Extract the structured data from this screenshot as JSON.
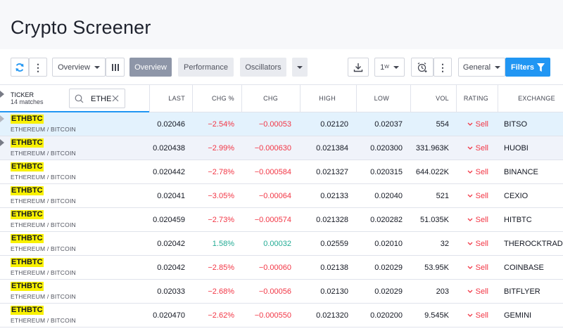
{
  "page": {
    "title": "Crypto Screener"
  },
  "toolbar": {
    "overview_dropdown": "Overview",
    "tabs": [
      "Overview",
      "Performance",
      "Oscillators"
    ],
    "interval": "1",
    "interval_sup": "W",
    "group": "General",
    "filters": "Filters"
  },
  "header": {
    "ticker": "TICKER",
    "matches": "14 matches",
    "search_value": "ETHE",
    "columns": [
      "LAST",
      "CHG %",
      "CHG",
      "HIGH",
      "LOW",
      "VOL",
      "RATING",
      "EXCHANGE"
    ]
  },
  "rows": [
    {
      "symbol": "ETHBTC",
      "desc": "ETHEREUM / BITCOIN",
      "last": "0.02046",
      "chg_pct": "−2.54%",
      "chg": "−0.00053",
      "high": "0.02120",
      "low": "0.02037",
      "vol": "554",
      "rating": "Sell",
      "exchange": "BITSO",
      "dir": "neg"
    },
    {
      "symbol": "ETHBTC",
      "desc": "ETHEREUM / BITCOIN",
      "last": "0.020438",
      "chg_pct": "−2.99%",
      "chg": "−0.000630",
      "high": "0.021384",
      "low": "0.020300",
      "vol": "331.963K",
      "rating": "Sell",
      "exchange": "HUOBI",
      "dir": "neg"
    },
    {
      "symbol": "ETHBTC",
      "desc": "ETHEREUM / BITCOIN",
      "last": "0.020442",
      "chg_pct": "−2.78%",
      "chg": "−0.000584",
      "high": "0.021327",
      "low": "0.020315",
      "vol": "644.022K",
      "rating": "Sell",
      "exchange": "BINANCE",
      "dir": "neg"
    },
    {
      "symbol": "ETHBTC",
      "desc": "ETHEREUM / BITCOIN",
      "last": "0.02041",
      "chg_pct": "−3.05%",
      "chg": "−0.00064",
      "high": "0.02133",
      "low": "0.02040",
      "vol": "521",
      "rating": "Sell",
      "exchange": "CEXIO",
      "dir": "neg"
    },
    {
      "symbol": "ETHBTC",
      "desc": "ETHEREUM / BITCOIN",
      "last": "0.020459",
      "chg_pct": "−2.73%",
      "chg": "−0.000574",
      "high": "0.021328",
      "low": "0.020282",
      "vol": "51.035K",
      "rating": "Sell",
      "exchange": "HITBTC",
      "dir": "neg"
    },
    {
      "symbol": "ETHBTC",
      "desc": "ETHEREUM / BITCOIN",
      "last": "0.02042",
      "chg_pct": "1.58%",
      "chg": "0.00032",
      "high": "0.02559",
      "low": "0.02010",
      "vol": "32",
      "rating": "Sell",
      "exchange": "THEROCKTRADING",
      "dir": "pos"
    },
    {
      "symbol": "ETHBTC",
      "desc": "ETHEREUM / BITCOIN",
      "last": "0.02042",
      "chg_pct": "−2.85%",
      "chg": "−0.00060",
      "high": "0.02138",
      "low": "0.02029",
      "vol": "53.95K",
      "rating": "Sell",
      "exchange": "COINBASE",
      "dir": "neg"
    },
    {
      "symbol": "ETHBTC",
      "desc": "ETHEREUM / BITCOIN",
      "last": "0.02033",
      "chg_pct": "−2.68%",
      "chg": "−0.00056",
      "high": "0.02130",
      "low": "0.02029",
      "vol": "203",
      "rating": "Sell",
      "exchange": "BITFLYER",
      "dir": "neg"
    },
    {
      "symbol": "ETHBTC",
      "desc": "ETHEREUM / BITCOIN",
      "last": "0.020470",
      "chg_pct": "−2.62%",
      "chg": "−0.000550",
      "high": "0.021320",
      "low": "0.020200",
      "vol": "9.545K",
      "rating": "Sell",
      "exchange": "GEMINI",
      "dir": "neg"
    }
  ]
}
